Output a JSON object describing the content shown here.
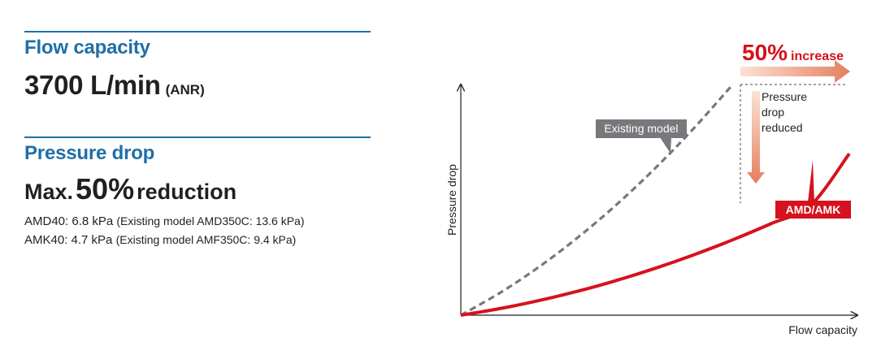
{
  "specs": {
    "flow": {
      "heading": "Flow capacity",
      "value": "3700 L/min",
      "unit": "(ANR)"
    },
    "pressure": {
      "heading": "Pressure drop",
      "prefix": "Max.",
      "value": "50%",
      "suffix": "reduction",
      "details": [
        {
          "main": "AMD40: 6.8 kPa",
          "note": "(Existing model AMD350C: 13.6 kPa)"
        },
        {
          "main": "AMK40: 4.7 kPa",
          "note": "(Existing model AMF350C: 9.4 kPa)"
        }
      ]
    }
  },
  "chart_data": {
    "type": "line",
    "xlabel": "Flow capacity",
    "ylabel": "Pressure drop",
    "x_ticks": [],
    "y_ticks": [],
    "series": [
      {
        "name": "Existing model",
        "style": "dashed",
        "color": "#77787b",
        "x": [
          0,
          0.1,
          0.2,
          0.3,
          0.4,
          0.5,
          0.6,
          0.7
        ],
        "y": [
          0,
          0.0961,
          0.2078,
          0.3351,
          0.478,
          0.6365,
          0.8106,
          1.0
        ]
      },
      {
        "name": "AMD/AMK",
        "style": "solid",
        "color": "#d5121e",
        "x": [
          0,
          0.1,
          0.2,
          0.3,
          0.4,
          0.5,
          0.6,
          0.7,
          0.8,
          0.9,
          1.0
        ],
        "y": [
          0,
          0.0284,
          0.0629,
          0.1035,
          0.1502,
          0.203,
          0.2619,
          0.3269,
          0.398,
          0.4752,
          0.7
        ]
      }
    ],
    "annotations": {
      "increase_value": "50%",
      "increase_text": "increase",
      "reduced_text": [
        "Pressure",
        "drop",
        "reduced"
      ]
    },
    "colors": {
      "existing": "#77787b",
      "new": "#d5121e",
      "arrow": "#e8967a",
      "heading": "#1f6fa8"
    }
  }
}
